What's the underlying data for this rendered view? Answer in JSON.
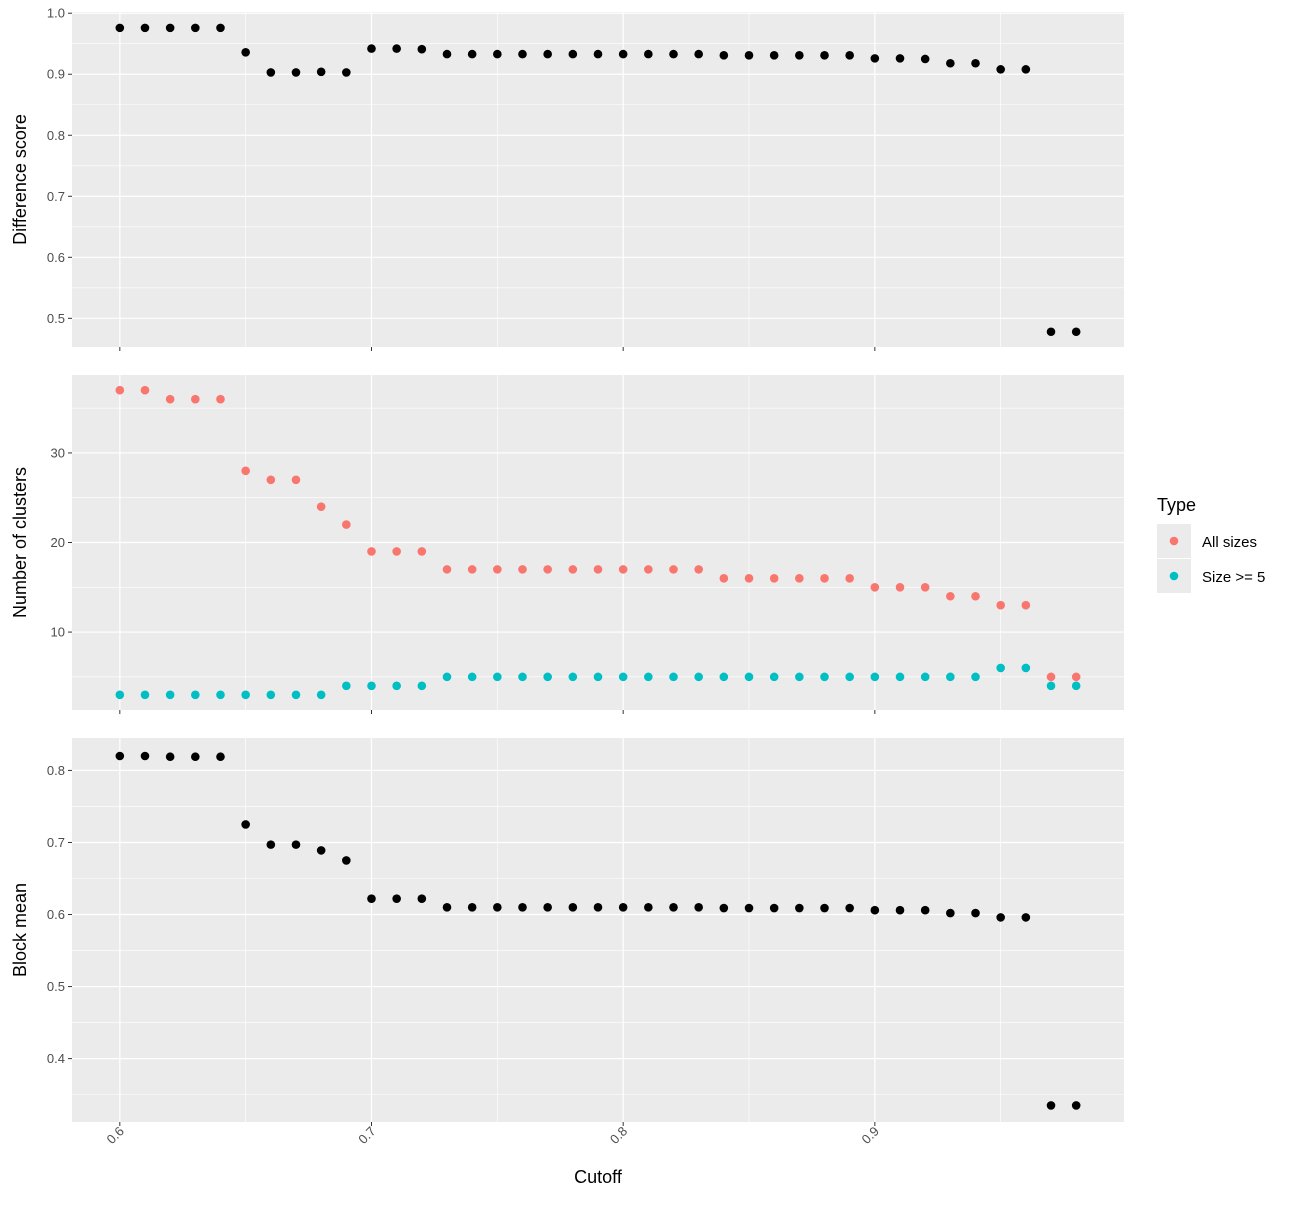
{
  "chart_data": {
    "type": "scatter",
    "xlabel": "Cutoff",
    "x_ticks": [
      0.6,
      0.7,
      0.8,
      0.9
    ],
    "xlim": [
      0.581,
      0.999
    ],
    "x": [
      0.6,
      0.61,
      0.62,
      0.63,
      0.64,
      0.65,
      0.66,
      0.67,
      0.68,
      0.69,
      0.7,
      0.71,
      0.72,
      0.73,
      0.74,
      0.75,
      0.76,
      0.77,
      0.78,
      0.79,
      0.8,
      0.81,
      0.82,
      0.83,
      0.84,
      0.85,
      0.86,
      0.87,
      0.88,
      0.89,
      0.9,
      0.91,
      0.92,
      0.93,
      0.94,
      0.95,
      0.96,
      0.97,
      0.98
    ],
    "legend": {
      "title": "Type",
      "position": "right",
      "entries": [
        {
          "label": "All sizes",
          "color": "#F8766D"
        },
        {
          "label": "Size >= 5",
          "color": "#00BFC4"
        }
      ]
    },
    "panels": [
      {
        "ylabel": "Difference score",
        "ylim": [
          0.453,
          1.002
        ],
        "y_ticks": [
          0.5,
          0.6,
          0.7,
          0.8,
          0.9,
          1.0
        ],
        "y_tick_labels": [
          "0.5",
          "0.6",
          "0.7",
          "0.8",
          "0.9",
          "1.0"
        ],
        "series": [
          {
            "color": "#000000",
            "values": [
              0.976,
              0.976,
              0.976,
              0.976,
              0.976,
              0.936,
              0.903,
              0.903,
              0.904,
              0.903,
              0.942,
              0.942,
              0.941,
              0.933,
              0.933,
              0.933,
              0.933,
              0.933,
              0.933,
              0.933,
              0.933,
              0.933,
              0.933,
              0.933,
              0.931,
              0.931,
              0.931,
              0.931,
              0.931,
              0.931,
              0.926,
              0.926,
              0.925,
              0.918,
              0.918,
              0.908,
              0.908,
              0.478,
              0.478
            ]
          }
        ]
      },
      {
        "ylabel": "Number of clusters",
        "ylim": [
          1.3,
          38.7
        ],
        "y_ticks": [
          10,
          20,
          30
        ],
        "y_tick_labels": [
          "10",
          "20",
          "30"
        ],
        "series": [
          {
            "name": "All sizes",
            "color": "#F8766D",
            "values": [
              37,
              37,
              36,
              36,
              36,
              28,
              27,
              27,
              24,
              22,
              19,
              19,
              19,
              17,
              17,
              17,
              17,
              17,
              17,
              17,
              17,
              17,
              17,
              17,
              16,
              16,
              16,
              16,
              16,
              16,
              15,
              15,
              15,
              14,
              14,
              13,
              13,
              5,
              5
            ]
          },
          {
            "name": "Size >= 5",
            "color": "#00BFC4",
            "values": [
              3,
              3,
              3,
              3,
              3,
              3,
              3,
              3,
              3,
              4,
              4,
              4,
              4,
              5,
              5,
              5,
              5,
              5,
              5,
              5,
              5,
              5,
              5,
              5,
              5,
              5,
              5,
              5,
              5,
              5,
              5,
              5,
              5,
              5,
              5,
              6,
              6,
              4,
              4
            ]
          }
        ]
      },
      {
        "ylabel": "Block mean",
        "ylim": [
          0.312,
          0.845
        ],
        "y_ticks": [
          0.4,
          0.5,
          0.6,
          0.7,
          0.8
        ],
        "y_tick_labels": [
          "0.4",
          "0.5",
          "0.6",
          "0.7",
          "0.8"
        ],
        "series": [
          {
            "color": "#000000",
            "values": [
              0.82,
              0.82,
              0.819,
              0.819,
              0.819,
              0.725,
              0.697,
              0.697,
              0.689,
              0.675,
              0.622,
              0.622,
              0.622,
              0.61,
              0.61,
              0.61,
              0.61,
              0.61,
              0.61,
              0.61,
              0.61,
              0.61,
              0.61,
              0.61,
              0.609,
              0.609,
              0.609,
              0.609,
              0.609,
              0.609,
              0.606,
              0.606,
              0.606,
              0.602,
              0.602,
              0.596,
              0.596,
              0.335,
              0.335
            ]
          }
        ]
      }
    ]
  }
}
